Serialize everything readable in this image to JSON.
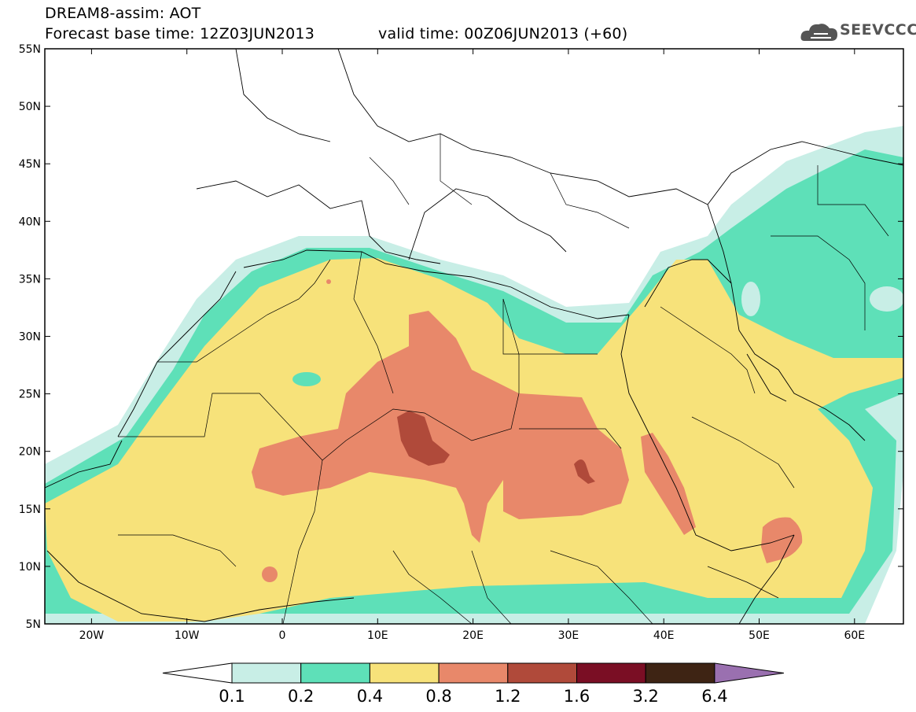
{
  "title": {
    "line1": "DREAM8-assim: AOT",
    "line2": "Forecast base time: 12Z03JUN2013",
    "valid": "valid time: 00Z06JUN2013 (+60)"
  },
  "logo": {
    "text": "SEEVCCC",
    "icon": "cloud-icon"
  },
  "axes": {
    "lat_labels": [
      "55N",
      "50N",
      "45N",
      "40N",
      "35N",
      "30N",
      "25N",
      "20N",
      "15N",
      "10N",
      "5N"
    ],
    "lon_labels": [
      "20W",
      "10W",
      "0",
      "10E",
      "20E",
      "30E",
      "40E",
      "50E",
      "60E"
    ]
  },
  "colorbar": {
    "labels": [
      "0.1",
      "0.2",
      "0.4",
      "0.8",
      "1.2",
      "1.6",
      "3.2",
      "6.4"
    ],
    "colors": [
      "#ffffff",
      "#c8eee6",
      "#5ee0b8",
      "#f7e27a",
      "#e8886a",
      "#b04a3a",
      "#7a0e24",
      "#3e2414",
      "#9a70b0"
    ]
  }
}
